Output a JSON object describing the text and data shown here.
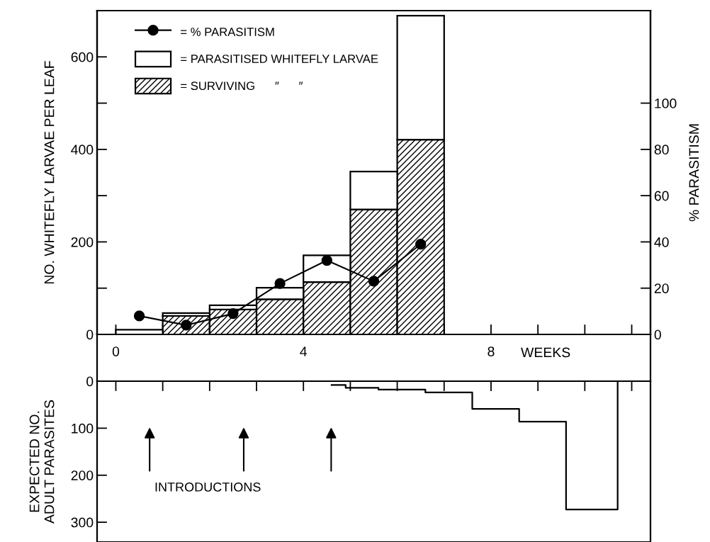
{
  "chart_data": [
    {
      "type": "bar",
      "stacked": true,
      "x": [
        0.5,
        1.5,
        2.5,
        3.5,
        4.5,
        5.5,
        6.5
      ],
      "series": [
        {
          "name": "= SURVIVING      ″      ″",
          "color": "#000000",
          "values": [
            0,
            40,
            54,
            76,
            113,
            270,
            421
          ]
        },
        {
          "name": "= PARASITISED WHITEFLY LARVAE",
          "color": "#ffffff",
          "values": [
            10,
            6,
            9,
            25,
            58,
            82,
            268
          ]
        },
        {
          "name": "= % PARASITISM",
          "type": "line",
          "axis": "y2",
          "color": "#000000",
          "marker": "circle",
          "x": [
            0.5,
            1.5,
            2.5,
            3.5,
            4.5,
            5.5,
            6.5
          ],
          "values": [
            8,
            4,
            9,
            22,
            32,
            23,
            39
          ]
        }
      ],
      "xlabel": "WEEKS",
      "ylabel": "NO. WHITEFLY LARVAE PER LEAF",
      "y2label": "% PARASITISM",
      "xlim": [
        -0.4,
        11.4
      ],
      "xticks": [
        0,
        {
          "value": 1,
          "label": null
        },
        {
          "value": 2,
          "label": null
        },
        {
          "value": 3,
          "label": null
        },
        4,
        {
          "value": 5,
          "label": null
        },
        {
          "value": 6,
          "label": null
        },
        {
          "value": 7,
          "label": null
        },
        8,
        {
          "value": 9,
          "label": null
        },
        {
          "value": 10,
          "label": null
        },
        {
          "value": 11,
          "label": null
        }
      ],
      "ylim": [
        0,
        700
      ],
      "yticks": [
        0,
        {
          "value": 100,
          "label": null
        },
        200,
        {
          "value": 300,
          "label": null
        },
        400,
        {
          "value": 500,
          "label": null
        },
        600
      ],
      "y2lim": [
        0,
        140
      ],
      "y2ticks": [
        0,
        20,
        40,
        60,
        80,
        100
      ],
      "legend": "top left",
      "grid": false
    },
    {
      "type": "step",
      "x": [
        4.6,
        4.9,
        5.6,
        6.6,
        7.6,
        8.6,
        9.6,
        10.7
      ],
      "series": [
        {
          "color": "#000000",
          "values": [
            8,
            14,
            18,
            24,
            59,
            86,
            273,
            0
          ]
        }
      ],
      "ylabel": "EXPECTED NO.\nADULT PARASITES",
      "xlim": [
        -0.4,
        11.4
      ],
      "xticks": [
        {
          "value": 0,
          "label": null
        },
        {
          "value": 1,
          "label": null
        },
        {
          "value": 2,
          "label": null
        },
        {
          "value": 3,
          "label": null
        },
        {
          "value": 4,
          "label": null
        },
        {
          "value": 5,
          "label": null
        },
        {
          "value": 6,
          "label": null
        },
        {
          "value": 7,
          "label": null
        },
        {
          "value": 8,
          "label": null
        },
        {
          "value": 9,
          "label": null
        },
        {
          "value": 10,
          "label": null
        },
        {
          "value": 11,
          "label": null
        }
      ],
      "ylim": [
        342,
        0
      ],
      "yticks": [
        0,
        100,
        200,
        300
      ],
      "tick_labels": "y",
      "grid": false,
      "annotations": [
        "INTRODUCTIONS"
      ]
    }
  ]
}
